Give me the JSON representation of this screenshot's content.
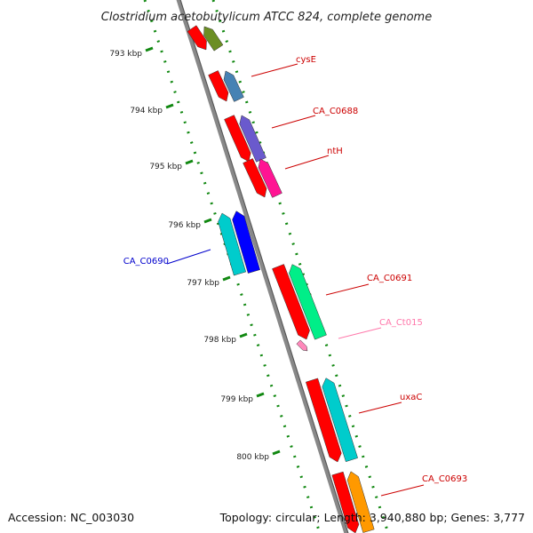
{
  "title": "Clostridium acetobutylicum ATCC 824, complete genome",
  "footer": {
    "accession": "Accession: NC_003030",
    "topology": "Topology: circular; Length: 3,940,880 bp; Genes: 3,777"
  },
  "ticks": [
    "793 kbp",
    "794 kbp",
    "795 kbp",
    "796 kbp",
    "797 kbp",
    "798 kbp",
    "799 kbp",
    "800 kbp"
  ],
  "genes": [
    {
      "label": "",
      "colors": [
        "#ff0000",
        "#6b8e23"
      ],
      "strand": "minus"
    },
    {
      "label": "cysE",
      "colors": [
        "#ff0000",
        "#4682b4"
      ],
      "strand": "minus",
      "label_color": "#cc0000"
    },
    {
      "label": "CA_C0688",
      "colors": [
        "#ff0000",
        "#6a5acd"
      ],
      "strand": "minus",
      "label_color": "#cc0000"
    },
    {
      "label": "ntH",
      "colors": [
        "#ff0000",
        "#ff1493"
      ],
      "strand": "minus",
      "label_color": "#cc0000"
    },
    {
      "label": "CA_C0690",
      "colors": [
        "#00cccc",
        "#0000ff"
      ],
      "strand": "plus",
      "label_color": "#0000cc"
    },
    {
      "label": "CA_C0691",
      "colors": [
        "#ff0000",
        "#00ee88"
      ],
      "strand": "minus",
      "label_color": "#cc0000"
    },
    {
      "label": "CA_Ct015",
      "colors": [
        "#ff88bb"
      ],
      "strand": "minus",
      "label_color": "#ff77aa"
    },
    {
      "label": "uxaC",
      "colors": [
        "#ff0000",
        "#00cccc"
      ],
      "strand": "minus",
      "label_color": "#cc0000"
    },
    {
      "label": "CA_C0693",
      "colors": [
        "#ff0000",
        "#ff9900"
      ],
      "strand": "minus",
      "label_color": "#cc0000"
    }
  ]
}
